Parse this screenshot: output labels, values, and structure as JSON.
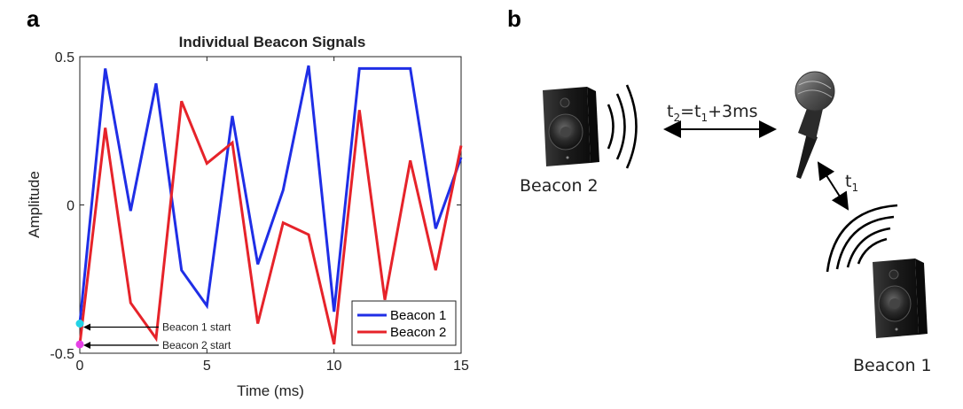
{
  "panels": {
    "a_label": "a",
    "b_label": "b"
  },
  "chart_data": {
    "type": "line",
    "title": "Individual Beacon Signals",
    "xlabel": "Time (ms)",
    "ylabel": "Amplitude",
    "xlim": [
      0,
      15
    ],
    "ylim": [
      -0.5,
      0.5
    ],
    "xticks": [
      0,
      5,
      10,
      15
    ],
    "yticks": [
      -0.5,
      0,
      0.5
    ],
    "ytick_labels": [
      "-0.5",
      "0",
      "0.5"
    ],
    "grid": false,
    "legend_position": "bottom-right",
    "series": [
      {
        "name": "Beacon 1",
        "color": "#1f2ee6",
        "x": [
          0,
          1,
          2,
          3,
          4,
          5,
          6,
          7,
          8,
          9,
          10,
          11,
          12,
          13,
          14,
          15
        ],
        "values": [
          -0.4,
          0.46,
          -0.02,
          0.41,
          -0.22,
          -0.34,
          0.3,
          -0.2,
          0.05,
          0.47,
          -0.36,
          0.46,
          0.46,
          0.46,
          -0.08,
          0.16
        ]
      },
      {
        "name": "Beacon 2",
        "color": "#e6232a",
        "x": [
          0,
          1,
          2,
          3,
          4,
          5,
          6,
          7,
          8,
          9,
          10,
          11,
          12,
          13,
          14,
          15
        ],
        "values": [
          -0.47,
          0.26,
          -0.33,
          -0.45,
          0.35,
          0.14,
          0.21,
          -0.4,
          -0.06,
          -0.1,
          -0.47,
          0.32,
          -0.32,
          0.15,
          -0.22,
          0.2
        ]
      }
    ],
    "markers": [
      {
        "name": "beacon-1-start-marker",
        "x": 0,
        "y": -0.4,
        "color": "#22d3e6"
      },
      {
        "name": "beacon-2-start-marker",
        "x": 0,
        "y": -0.47,
        "color": "#e640e6"
      }
    ],
    "annotations": [
      {
        "text": "Beacon 1 start",
        "x": 0,
        "y": -0.4
      },
      {
        "text": "Beacon 2 start",
        "x": 0,
        "y": -0.47
      }
    ]
  },
  "diagram": {
    "beacon2_label": "Beacon 2",
    "beacon1_label": "Beacon 1",
    "t2_main": "t",
    "t2_sub": "2",
    "t2_eq": "=t",
    "t2_sub2": "1",
    "t2_rest": "+3ms",
    "t1_main": "t",
    "t1_sub": "1"
  }
}
